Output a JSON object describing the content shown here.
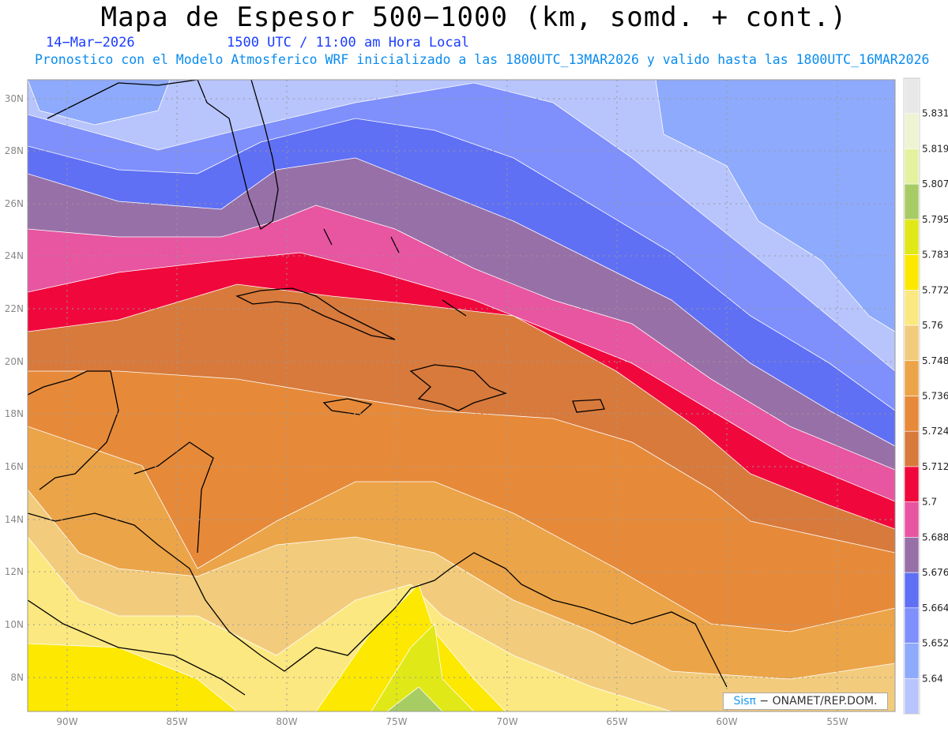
{
  "header": {
    "title": "Mapa de Espesor 500−1000 (km, somd. + cont.)",
    "date": "14−Mar−2026",
    "time": "1500 UTC / 11:00 am Hora Local",
    "init": "Pronostico con el Modelo Atmosferico WRF inicializado a las 1800UTC_13MAR2026 y valido hasta las  1800UTC_16MAR2026"
  },
  "axes": {
    "lat_labels": [
      "30N",
      "28N",
      "26N",
      "24N",
      "22N",
      "20N",
      "18N",
      "16N",
      "14N",
      "12N",
      "10N",
      "8N"
    ],
    "lon_labels": [
      "90W",
      "85W",
      "80W",
      "75W",
      "70W",
      "65W",
      "60W",
      "55W"
    ]
  },
  "colorbar": {
    "labels": [
      "5.831",
      "5.819",
      "5.807",
      "5.795",
      "5.783",
      "5.772",
      "5.76",
      "5.748",
      "5.736",
      "5.724",
      "5.712",
      "5.7",
      "5.688",
      "5.676",
      "5.664",
      "5.652",
      "5.64"
    ],
    "colors": [
      "#e8e8e8",
      "#eef4d2",
      "#e4f2a0",
      "#a8cc64",
      "#e0e818",
      "#fce800",
      "#fce880",
      "#f2cc7c",
      "#eca448",
      "#e68a3a",
      "#d87a3c",
      "#f0083c",
      "#e855a0",
      "#9870a8",
      "#6070f4",
      "#7f90fc",
      "#8eaafc",
      "#b8c4fc"
    ]
  },
  "credit": {
    "brand": "Sisπ",
    "text": " − ONAMET/REP.DOM."
  }
}
